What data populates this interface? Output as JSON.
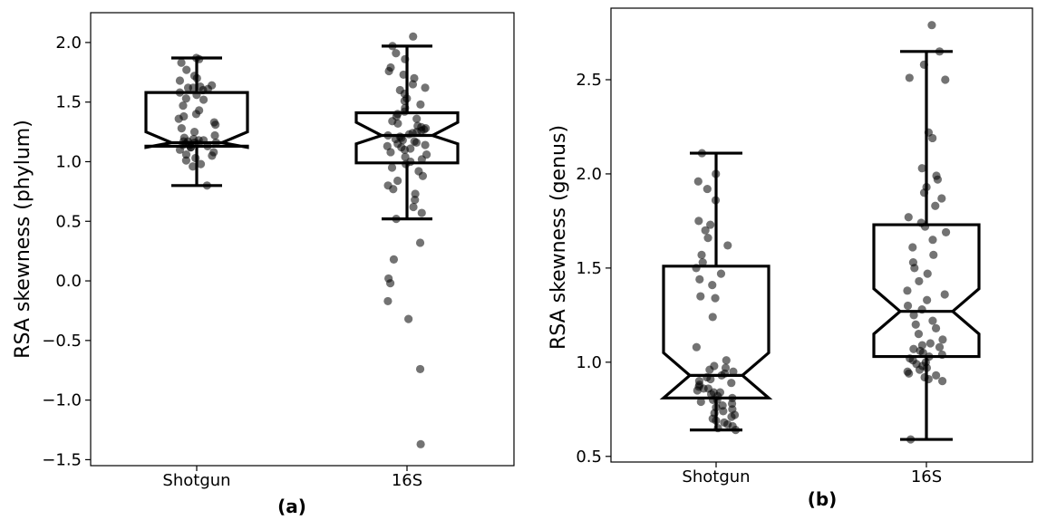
{
  "chart_data": [
    {
      "type": "box",
      "panel_label": "(a)",
      "ylabel": "RSA skewness (phylum)",
      "ylim": [
        -1.55,
        2.25
      ],
      "yticks": [
        -1.5,
        -1.0,
        -0.5,
        0.0,
        0.5,
        1.0,
        1.5,
        2.0
      ],
      "ytick_labels": [
        "−1.5",
        "−1.0",
        "−0.5",
        "0.0",
        "0.5",
        "1.0",
        "1.5",
        "2.0"
      ],
      "categories": [
        "Shotgun",
        "16S"
      ],
      "boxes": [
        {
          "name": "Shotgun",
          "whislo": 0.8,
          "q1": 1.13,
          "notchlo": 1.12,
          "med": 1.16,
          "notchhi": 1.25,
          "q3": 1.58,
          "whishi": 1.87
        },
        {
          "name": "16S",
          "whislo": 0.52,
          "q1": 0.99,
          "notchlo": 1.15,
          "med": 1.22,
          "notchhi": 1.33,
          "q3": 1.41,
          "whishi": 1.97
        }
      ],
      "points": [
        [
          1.87,
          1.86,
          1.83,
          1.77,
          1.72,
          1.7,
          1.68,
          1.64,
          1.63,
          1.62,
          1.62,
          1.61,
          1.6,
          1.58,
          1.56,
          1.53,
          1.52,
          1.47,
          1.43,
          1.4,
          1.38,
          1.36,
          1.33,
          1.31,
          1.28,
          1.25,
          1.22,
          1.2,
          1.19,
          1.18,
          1.18,
          1.17,
          1.17,
          1.16,
          1.16,
          1.15,
          1.15,
          1.14,
          1.14,
          1.13,
          1.12,
          1.12,
          1.1,
          1.08,
          1.06,
          1.05,
          1.03,
          1.01,
          0.98,
          0.96,
          0.8
        ],
        [
          2.05,
          1.97,
          1.91,
          1.86,
          1.79,
          1.76,
          1.73,
          1.7,
          1.65,
          1.62,
          1.6,
          1.57,
          1.53,
          1.51,
          1.48,
          1.45,
          1.42,
          1.4,
          1.38,
          1.36,
          1.34,
          1.32,
          1.3,
          1.29,
          1.28,
          1.27,
          1.26,
          1.25,
          1.24,
          1.23,
          1.22,
          1.21,
          1.2,
          1.19,
          1.18,
          1.17,
          1.16,
          1.15,
          1.14,
          1.13,
          1.12,
          1.11,
          1.1,
          1.08,
          1.06,
          1.04,
          1.02,
          1.0,
          0.98,
          0.95,
          0.92,
          0.88,
          0.84,
          0.8,
          0.77,
          0.73,
          0.68,
          0.62,
          0.57,
          0.52,
          0.32,
          0.18,
          0.02,
          -0.02,
          -0.17,
          -0.32,
          -0.74,
          -1.37
        ]
      ]
    },
    {
      "type": "box",
      "panel_label": "(b)",
      "ylabel": "RSA skewness (genus)",
      "ylim": [
        0.47,
        2.88
      ],
      "yticks": [
        0.5,
        1.0,
        1.5,
        2.0,
        2.5
      ],
      "ytick_labels": [
        "0.5",
        "1.0",
        "1.5",
        "2.0",
        "2.5"
      ],
      "categories": [
        "Shotgun",
        "16S"
      ],
      "boxes": [
        {
          "name": "Shotgun",
          "whislo": 0.64,
          "q1": 0.81,
          "notchlo": 0.81,
          "med": 0.93,
          "notchhi": 1.05,
          "q3": 1.51,
          "whishi": 2.11
        },
        {
          "name": "16S",
          "whislo": 0.59,
          "q1": 1.03,
          "notchlo": 1.15,
          "med": 1.27,
          "notchhi": 1.39,
          "q3": 1.73,
          "whishi": 2.65
        }
      ],
      "points": [
        [
          2.11,
          2.0,
          1.96,
          1.92,
          1.86,
          1.75,
          1.73,
          1.7,
          1.66,
          1.62,
          1.57,
          1.53,
          1.5,
          1.47,
          1.44,
          1.41,
          1.35,
          1.34,
          1.24,
          1.08,
          1.01,
          0.98,
          0.97,
          0.96,
          0.95,
          0.94,
          0.93,
          0.92,
          0.91,
          0.9,
          0.89,
          0.88,
          0.87,
          0.86,
          0.86,
          0.85,
          0.84,
          0.84,
          0.83,
          0.82,
          0.81,
          0.8,
          0.8,
          0.79,
          0.78,
          0.77,
          0.76,
          0.75,
          0.74,
          0.73,
          0.72,
          0.71,
          0.7,
          0.69,
          0.68,
          0.67,
          0.66,
          0.65,
          0.64
        ],
        [
          2.79,
          2.65,
          2.58,
          2.51,
          2.5,
          2.22,
          2.19,
          2.03,
          1.99,
          1.97,
          1.93,
          1.9,
          1.87,
          1.83,
          1.77,
          1.74,
          1.72,
          1.69,
          1.65,
          1.61,
          1.57,
          1.53,
          1.5,
          1.47,
          1.43,
          1.38,
          1.36,
          1.33,
          1.3,
          1.28,
          1.25,
          1.22,
          1.2,
          1.18,
          1.15,
          1.12,
          1.1,
          1.09,
          1.08,
          1.07,
          1.06,
          1.05,
          1.04,
          1.03,
          1.02,
          1.01,
          1.0,
          0.99,
          0.98,
          0.97,
          0.96,
          0.95,
          0.94,
          0.93,
          0.92,
          0.91,
          0.9,
          0.59
        ]
      ]
    }
  ]
}
